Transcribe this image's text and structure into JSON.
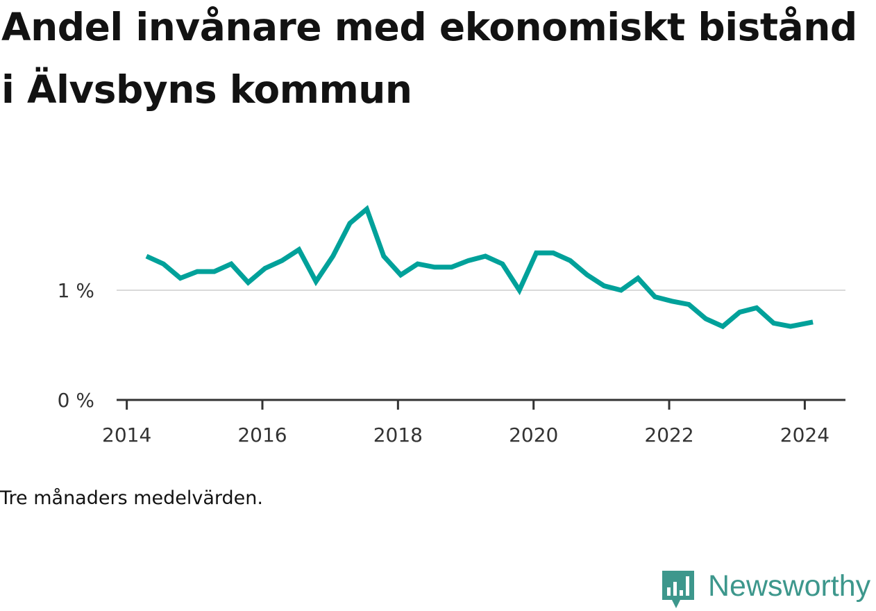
{
  "title": "Andel invånare med ekonomiskt bistånd i Älvsbyns kommun",
  "note": "Tre månaders medelvärden.",
  "brand": {
    "name": "Newsworthy",
    "icon": "bar-chart-badge-icon",
    "color": "#3d978c"
  },
  "chart_data": {
    "type": "line",
    "title": "Andel invånare med ekonomiskt bistånd i Älvsbyns kommun",
    "xlabel": "",
    "ylabel": "",
    "ylim": [
      0,
      2
    ],
    "xlim": [
      2013.85,
      2024.6
    ],
    "y_ticks": [
      {
        "value": 0,
        "label": "0 %"
      },
      {
        "value": 1,
        "label": "1 %"
      }
    ],
    "x_ticks": [
      {
        "value": 2014,
        "label": "2014"
      },
      {
        "value": 2016,
        "label": "2016"
      },
      {
        "value": 2018,
        "label": "2018"
      },
      {
        "value": 2020,
        "label": "2020"
      },
      {
        "value": 2022,
        "label": "2022"
      },
      {
        "value": 2024,
        "label": "2024"
      }
    ],
    "grid": "horizontal",
    "color": "#00a19a",
    "series": [
      {
        "x": [
          2014.29,
          2014.54,
          2014.79,
          2015.04,
          2015.29,
          2015.54,
          2015.79,
          2016.04,
          2016.29,
          2016.54,
          2016.79,
          2017.04,
          2017.29,
          2017.54,
          2017.79,
          2018.04,
          2018.29,
          2018.54,
          2018.79,
          2019.04,
          2019.29,
          2019.54,
          2019.79,
          2020.04,
          2020.29,
          2020.54,
          2020.79,
          2021.04,
          2021.29,
          2021.54,
          2021.79,
          2022.04,
          2022.29,
          2022.54,
          2022.79,
          2023.04,
          2023.29,
          2023.54,
          2023.79,
          2024.12
        ],
        "values": [
          1.31,
          1.24,
          1.11,
          1.17,
          1.17,
          1.24,
          1.07,
          1.2,
          1.27,
          1.37,
          1.08,
          1.31,
          1.61,
          1.74,
          1.31,
          1.14,
          1.24,
          1.21,
          1.21,
          1.27,
          1.31,
          1.24,
          1.0,
          1.34,
          1.34,
          1.27,
          1.14,
          1.04,
          1.0,
          1.11,
          0.94,
          0.9,
          0.87,
          0.74,
          0.67,
          0.8,
          0.84,
          0.7,
          0.67,
          0.71
        ]
      }
    ]
  }
}
